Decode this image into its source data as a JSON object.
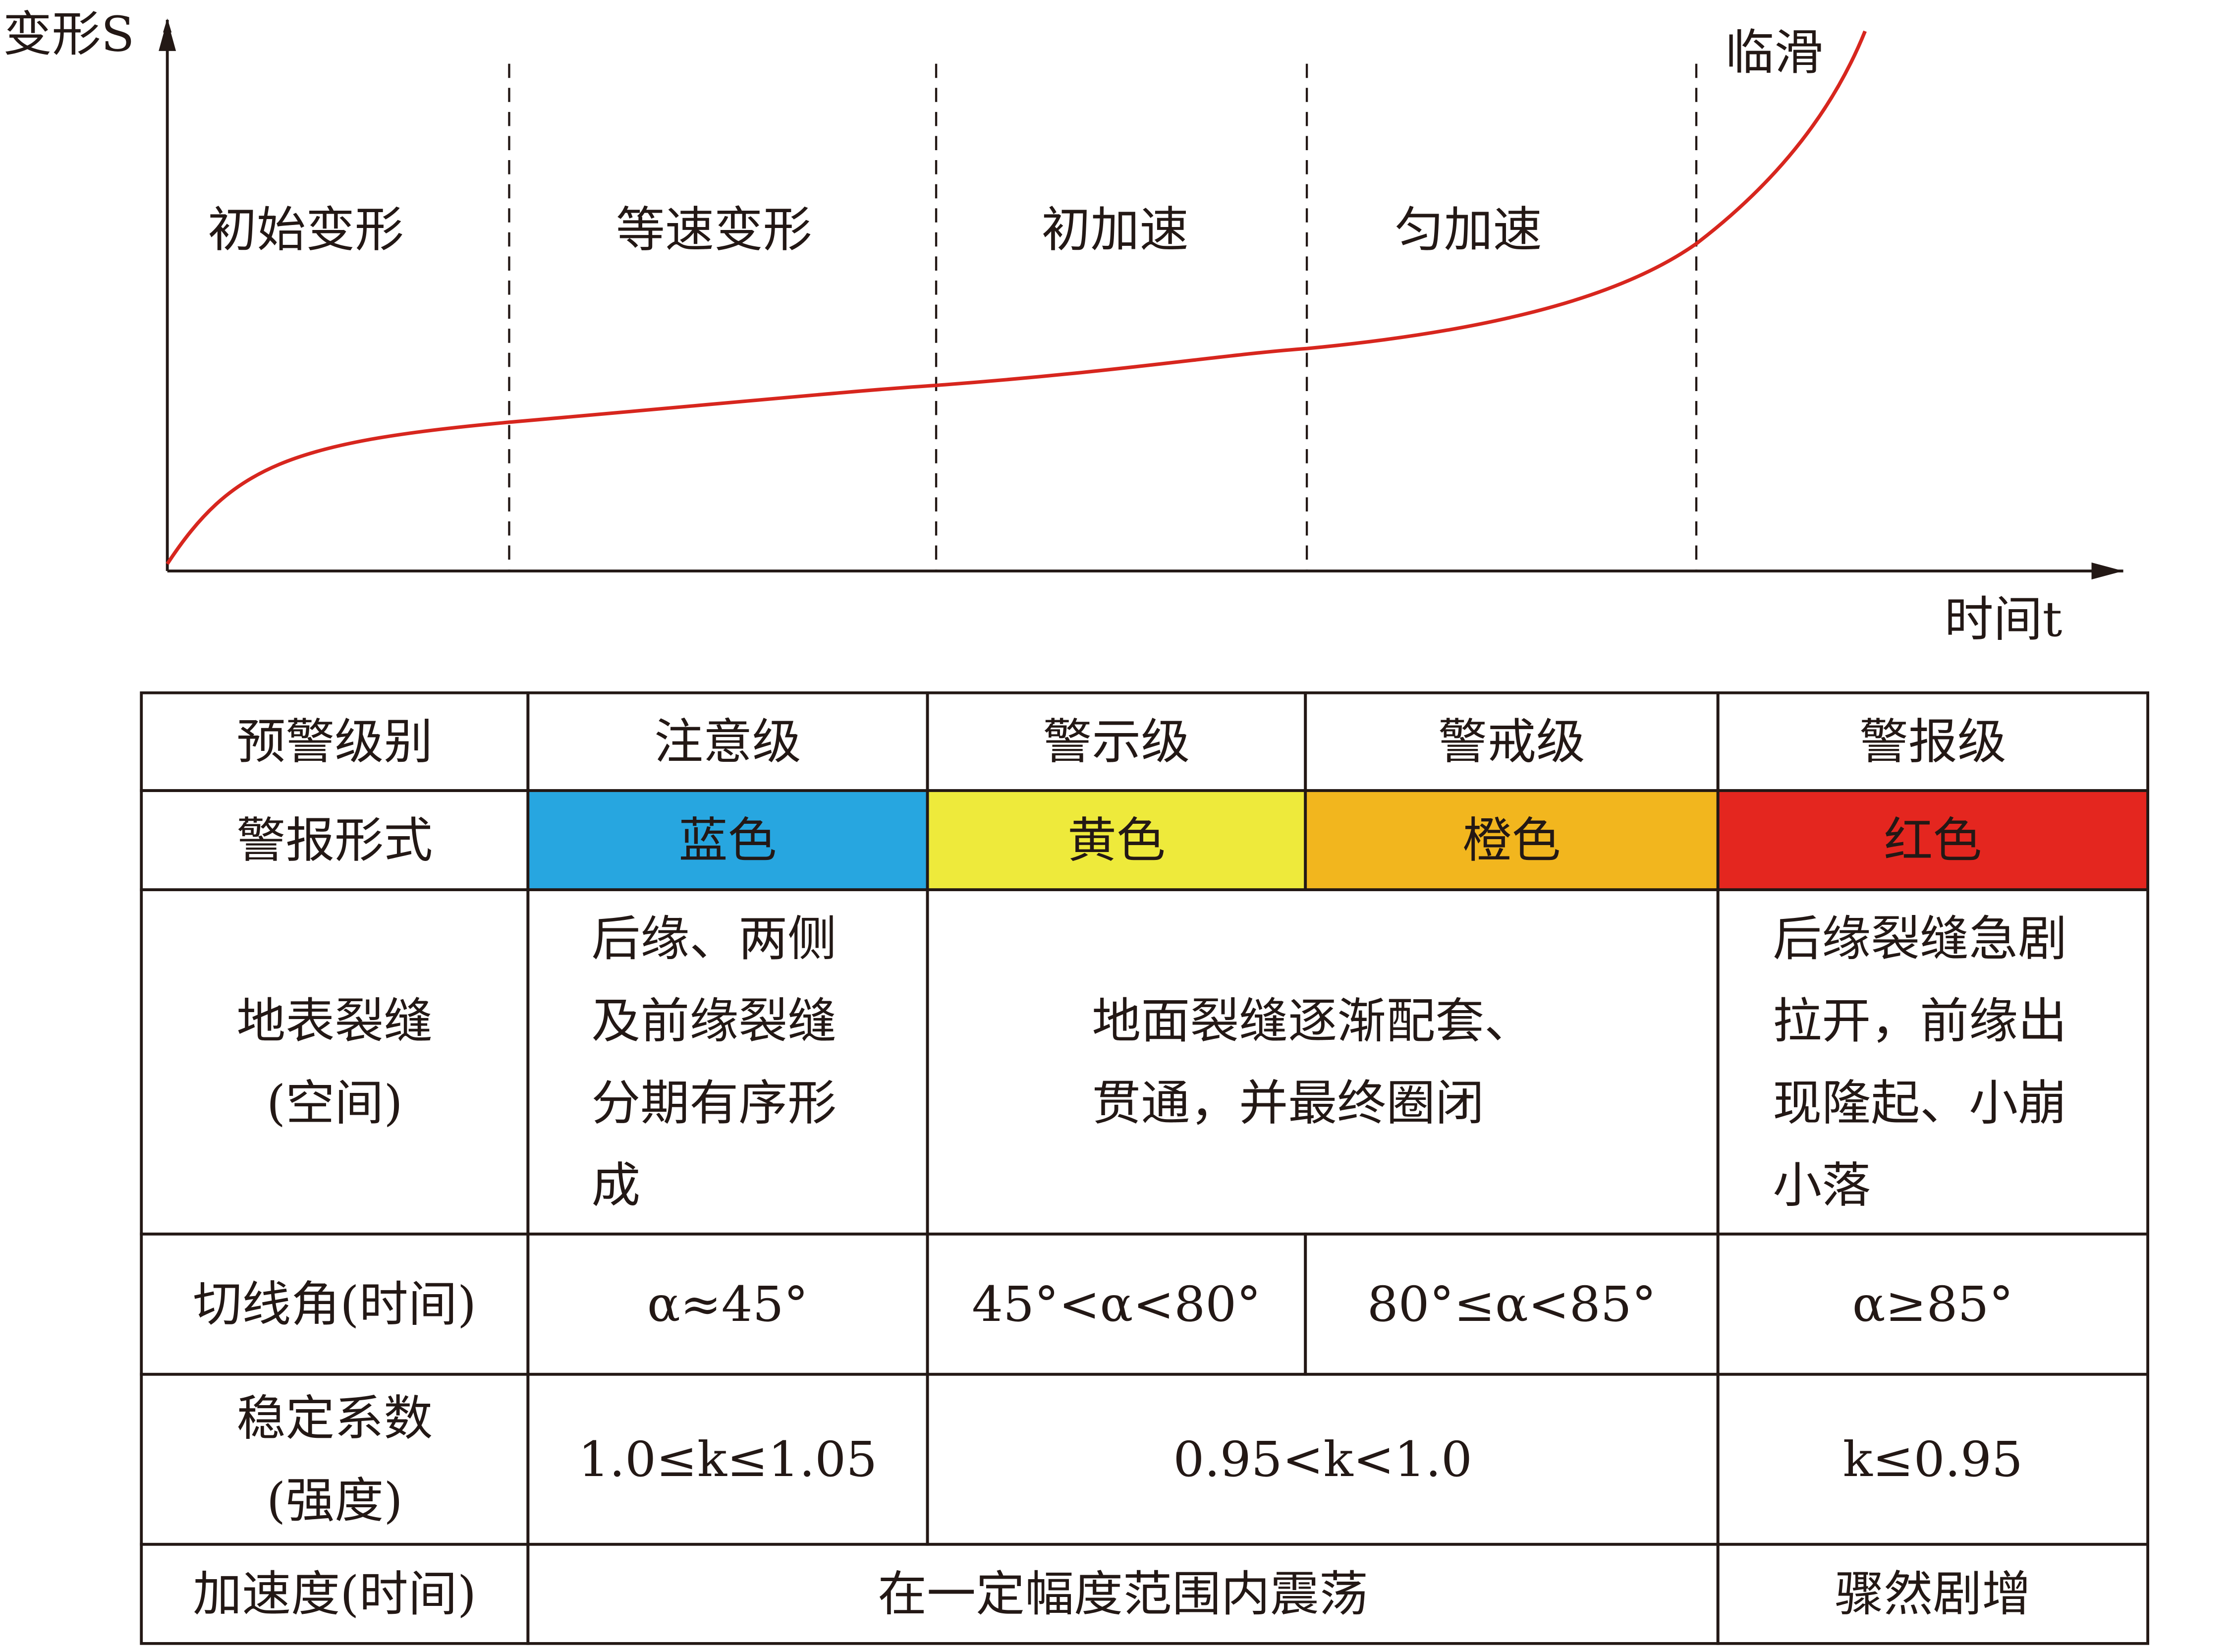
{
  "chart": {
    "y_label": "变形S",
    "x_label": "时间t",
    "stages": [
      "初始变形",
      "等速变形",
      "初加速",
      "匀加速",
      "临滑"
    ]
  },
  "table": {
    "rows": [
      [
        [
          "预警级别"
        ],
        [
          "注意级"
        ],
        [
          "警示级"
        ],
        [
          "警戒级"
        ],
        [
          "警报级"
        ]
      ],
      [
        [
          "警报形式"
        ],
        [
          "蓝色"
        ],
        [
          "黄色"
        ],
        [
          "橙色"
        ],
        [
          "红色"
        ]
      ],
      [
        [
          "地表裂缝",
          "(空间)"
        ],
        [
          "后缘、两侧",
          "及前缘裂缝",
          "分期有序形",
          "成"
        ],
        [
          "地面裂缝逐渐配套、",
          "贯通，并最终圈闭"
        ],
        [
          "后缘裂缝急剧",
          "拉开，前缘出",
          "现隆起、小崩",
          "小落"
        ]
      ],
      [
        [
          "切线角(时间)"
        ],
        [
          "α≈45°"
        ],
        [
          "45°<α<80°"
        ],
        [
          "80°≤α<85°"
        ],
        [
          "α≥85°"
        ]
      ],
      [
        [
          "稳定系数",
          "(强度)"
        ],
        [
          "1.0≤k≤1.05"
        ],
        [
          "0.95<k<1.0"
        ],
        [
          "k≤0.95"
        ]
      ],
      [
        [
          "加速度(时间)"
        ],
        [
          "在一定幅度范围内震荡"
        ],
        [
          "骤然剧增"
        ]
      ]
    ],
    "colors": [
      "#27a6e0",
      "#eeea3b",
      "#f2b61e",
      "#e4261f"
    ]
  }
}
